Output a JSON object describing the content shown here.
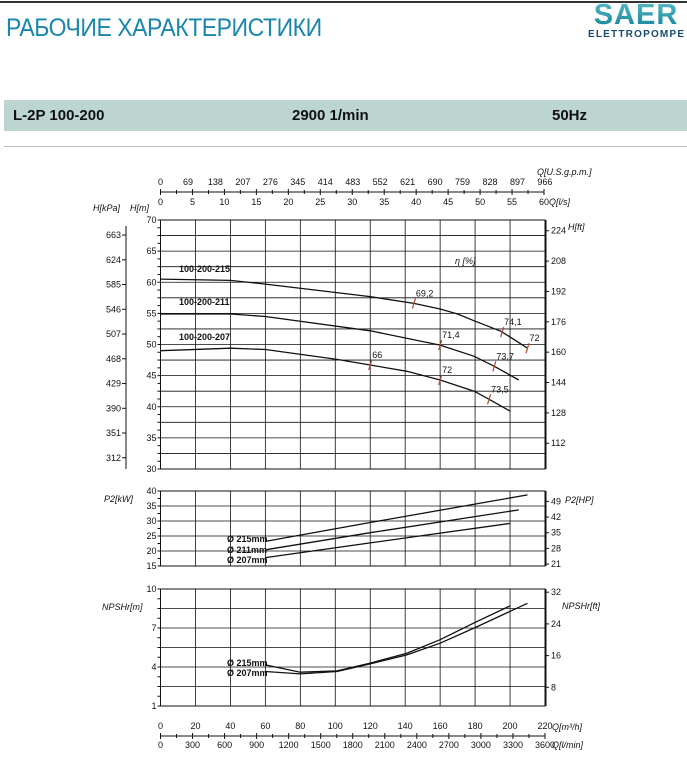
{
  "header": {
    "title": "РАБОЧИЕ ХАРАКТЕРИСТИКИ",
    "logo_text": "SAER",
    "logo_subtext": "ELETTROPOMPE",
    "brand_color": "#1a86ad"
  },
  "band": {
    "model": "L-2P 100-200",
    "speed": "2900 1/min",
    "frequency": "50Hz",
    "color": "#bcd5d1"
  },
  "chart_data": [
    {
      "type": "line",
      "id": "head",
      "xlabel": "Q[m³/h]",
      "ylabel": "H[m]",
      "ylabel_left_outer": "H[kPa]",
      "ylabel_right": "H[ft]",
      "efficiency_label": "η [%]",
      "xlim": [
        0,
        220
      ],
      "ylim": [
        30,
        70
      ],
      "yticks": [
        30,
        35,
        40,
        45,
        50,
        55,
        60,
        65,
        70
      ],
      "kpa_ticks": [
        312,
        351,
        390,
        429,
        468,
        507,
        546,
        585,
        624,
        663
      ],
      "ft_ticks": [
        112,
        128,
        144,
        160,
        176,
        192,
        208,
        224
      ],
      "grid": true,
      "series": [
        {
          "name": "100-200-215",
          "x": [
            0,
            40,
            60,
            120,
            145,
            160,
            170,
            179.5,
            195,
            210
          ],
          "y": [
            60.5,
            60.3,
            59.7,
            57.7,
            56.6,
            55.7,
            54.9,
            53.8,
            52.1,
            49.4
          ]
        },
        {
          "name": "100-200-211",
          "x": [
            0,
            40,
            60,
            120,
            160,
            179.5,
            191,
            205
          ],
          "y": [
            54.9,
            54.9,
            54.5,
            52.2,
            49.9,
            48.1,
            46.5,
            44.3
          ]
        },
        {
          "name": "100-200-207",
          "x": [
            0,
            40,
            60,
            101,
            120,
            141,
            160,
            179.5,
            188,
            200
          ],
          "y": [
            49.0,
            49.4,
            49.2,
            47.6,
            46.7,
            45.7,
            44.3,
            42.5,
            41.2,
            39.3
          ]
        }
      ],
      "efficiency_marks": [
        {
          "label": "69,2",
          "x": 145,
          "y": 56.6
        },
        {
          "label": "74,1",
          "x": 195.5,
          "y": 52.0
        },
        {
          "label": "72",
          "x": 210,
          "y": 49.4
        },
        {
          "label": "71,4",
          "x": 160,
          "y": 49.9
        },
        {
          "label": "73,7",
          "x": 191,
          "y": 46.5
        },
        {
          "label": "66",
          "x": 120,
          "y": 46.7
        },
        {
          "label": "72",
          "x": 160,
          "y": 44.3
        },
        {
          "label": "73,5",
          "x": 188,
          "y": 41.2
        }
      ]
    },
    {
      "type": "line",
      "id": "power",
      "ylabel": "P2[kW]",
      "ylabel_right": "P2[HP]",
      "xlim": [
        0,
        220
      ],
      "ylim": [
        15,
        40
      ],
      "yticks": [
        15,
        20,
        25,
        30,
        35,
        40
      ],
      "hp_ticks": [
        21,
        28,
        35,
        42,
        49
      ],
      "grid": true,
      "series": [
        {
          "name": "Ø 215mm",
          "x": [
            60,
            120,
            210
          ],
          "y": [
            23.2,
            29.5,
            38.7
          ]
        },
        {
          "name": "Ø 211mm",
          "x": [
            60,
            120,
            205
          ],
          "y": [
            20.4,
            26.1,
            33.7
          ]
        },
        {
          "name": "Ø 207mm",
          "x": [
            60,
            120,
            200
          ],
          "y": [
            17.8,
            22.7,
            29.2
          ]
        }
      ]
    },
    {
      "type": "line",
      "id": "npsh",
      "ylabel": "NPSHr[m]",
      "ylabel_right": "NPSHr[ft]",
      "xlim": [
        0,
        220
      ],
      "ylim": [
        1,
        10
      ],
      "yticks": [
        1,
        4,
        7,
        10
      ],
      "ft_ticks": [
        8,
        16,
        24,
        32
      ],
      "grid": true,
      "series": [
        {
          "name": "Ø 215mm",
          "x": [
            60,
            80,
            101,
            120,
            141,
            160,
            179.5,
            200
          ],
          "y": [
            4.16,
            3.6,
            3.7,
            4.3,
            5.06,
            6.1,
            7.4,
            8.7
          ]
        },
        {
          "name": "Ø 207mm",
          "x": [
            60,
            80,
            101,
            120,
            141,
            160,
            179.5,
            210
          ],
          "y": [
            3.65,
            3.47,
            3.65,
            4.24,
            4.93,
            5.83,
            7.0,
            8.9
          ]
        }
      ]
    }
  ],
  "axes": {
    "top_gpm_label": "Q[U.S.g.p.m.]",
    "top_gpm_ticks": [
      0,
      69,
      138,
      207,
      276,
      345,
      414,
      483,
      552,
      621,
      690,
      759,
      828,
      897,
      966
    ],
    "top_ls_label": "Q[l/s]",
    "top_ls_ticks": [
      0,
      5,
      10,
      15,
      20,
      25,
      30,
      35,
      40,
      45,
      50,
      55,
      60
    ],
    "bottom_m3h_label": "Q[m³/h]",
    "bottom_m3h_ticks": [
      0,
      20,
      40,
      60,
      80,
      100,
      120,
      140,
      160,
      180,
      200,
      220
    ],
    "bottom_lmin_label": "Q[l/min]",
    "bottom_lmin_ticks": [
      0,
      300,
      600,
      900,
      1200,
      1500,
      1800,
      2100,
      2400,
      2700,
      3000,
      3300,
      3600
    ]
  }
}
